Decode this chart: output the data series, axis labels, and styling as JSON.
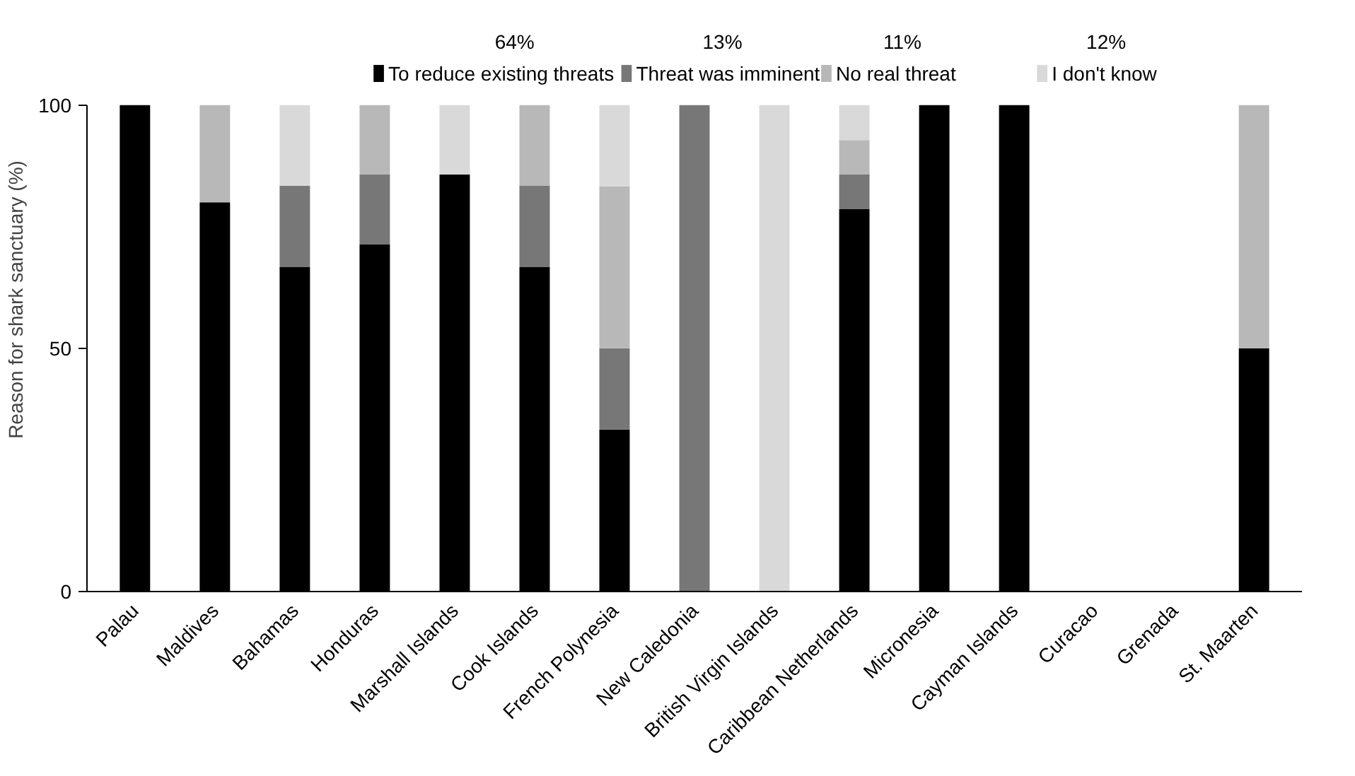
{
  "chart_data": {
    "type": "bar",
    "stacked": true,
    "ylabel": "Reason for shark sanctuary (%)",
    "categories": [
      "Palau",
      "Maldives",
      "Bahamas",
      "Honduras",
      "Marshall Islands",
      "Cook Islands",
      "French Polynesia",
      "New Caledonia",
      "British Virgin Islands",
      "Caribbean Netherlands",
      "Micronesia",
      "Cayman Islands",
      "Curacao",
      "Grenada",
      "St. Maarten"
    ],
    "series": [
      {
        "name": "To reduce existing threats",
        "color": "#000000",
        "values": [
          100,
          80,
          66.7,
          71.4,
          85.7,
          66.7,
          33.3,
          0,
          0,
          78.6,
          100,
          100,
          0,
          0,
          50
        ]
      },
      {
        "name": "Threat was imminent",
        "color": "#777777",
        "values": [
          0,
          0,
          16.7,
          14.3,
          0,
          16.7,
          16.7,
          100,
          0,
          7.1,
          0,
          0,
          0,
          0,
          0
        ]
      },
      {
        "name": "No real threat",
        "color": "#b8b8b8",
        "values": [
          0,
          20,
          0,
          14.3,
          0,
          16.6,
          33.3,
          0,
          0,
          7.1,
          0,
          0,
          0,
          0,
          50
        ]
      },
      {
        "name": "I don't know",
        "color": "#d9d9d9",
        "values": [
          0,
          0,
          16.6,
          0,
          14.3,
          0,
          16.7,
          0,
          100,
          7.2,
          0,
          0,
          0,
          0,
          0
        ]
      }
    ],
    "annotations": [
      "64%",
      "13%",
      "11%",
      "12%"
    ],
    "ylim": [
      0,
      100
    ],
    "yticks": [
      0,
      50,
      100
    ],
    "grid": false,
    "legend": "top"
  }
}
